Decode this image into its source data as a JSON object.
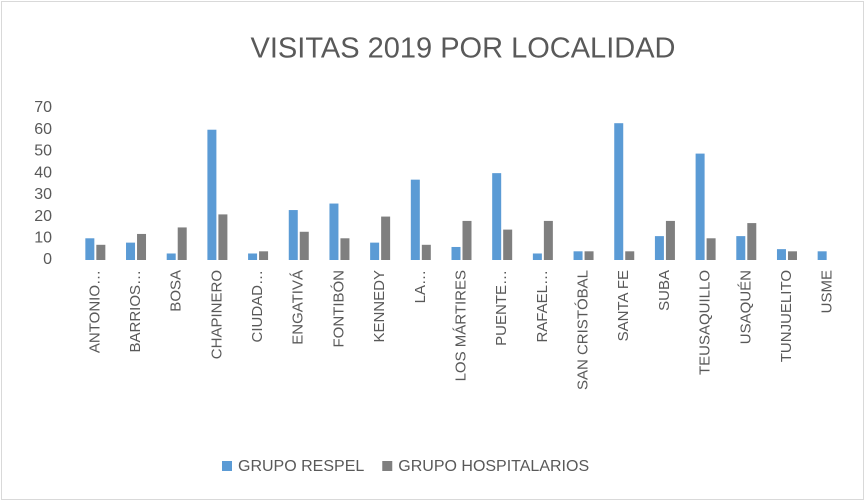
{
  "chart_data": {
    "type": "bar",
    "title": "VISITAS 2019 POR LOCALIDAD",
    "categories": [
      "ANTONIO…",
      "BARRIOS…",
      "BOSA",
      "CHAPINERO",
      "CIUDAD…",
      "ENGATIVÁ",
      "FONTIBÓN",
      "KENNEDY",
      "LA…",
      "LOS MÁRTIRES",
      "PUENTE…",
      "RAFAEL…",
      "SAN CRISTÓBAL",
      "SANTA FE",
      "SUBA",
      "TEUSAQUILLO",
      "USAQUÉN",
      "TUNJUELITO",
      "USME"
    ],
    "series": [
      {
        "name": "GRUPO RESPEL",
        "color": "#5b9bd5",
        "values": [
          10,
          8,
          3,
          60,
          3,
          23,
          26,
          8,
          37,
          6,
          40,
          3,
          4,
          63,
          11,
          49,
          11,
          5,
          4
        ]
      },
      {
        "name": "GRUPO HOSPITALARIOS",
        "color": "#7f7f7f",
        "values": [
          7,
          12,
          15,
          21,
          4,
          13,
          10,
          20,
          7,
          18,
          14,
          18,
          4,
          4,
          18,
          10,
          17,
          4,
          0
        ]
      }
    ],
    "ylim": [
      0,
      70
    ],
    "yticks": [
      0,
      10,
      20,
      30,
      40,
      50,
      60,
      70
    ],
    "grid": false,
    "legend": "bottom"
  }
}
